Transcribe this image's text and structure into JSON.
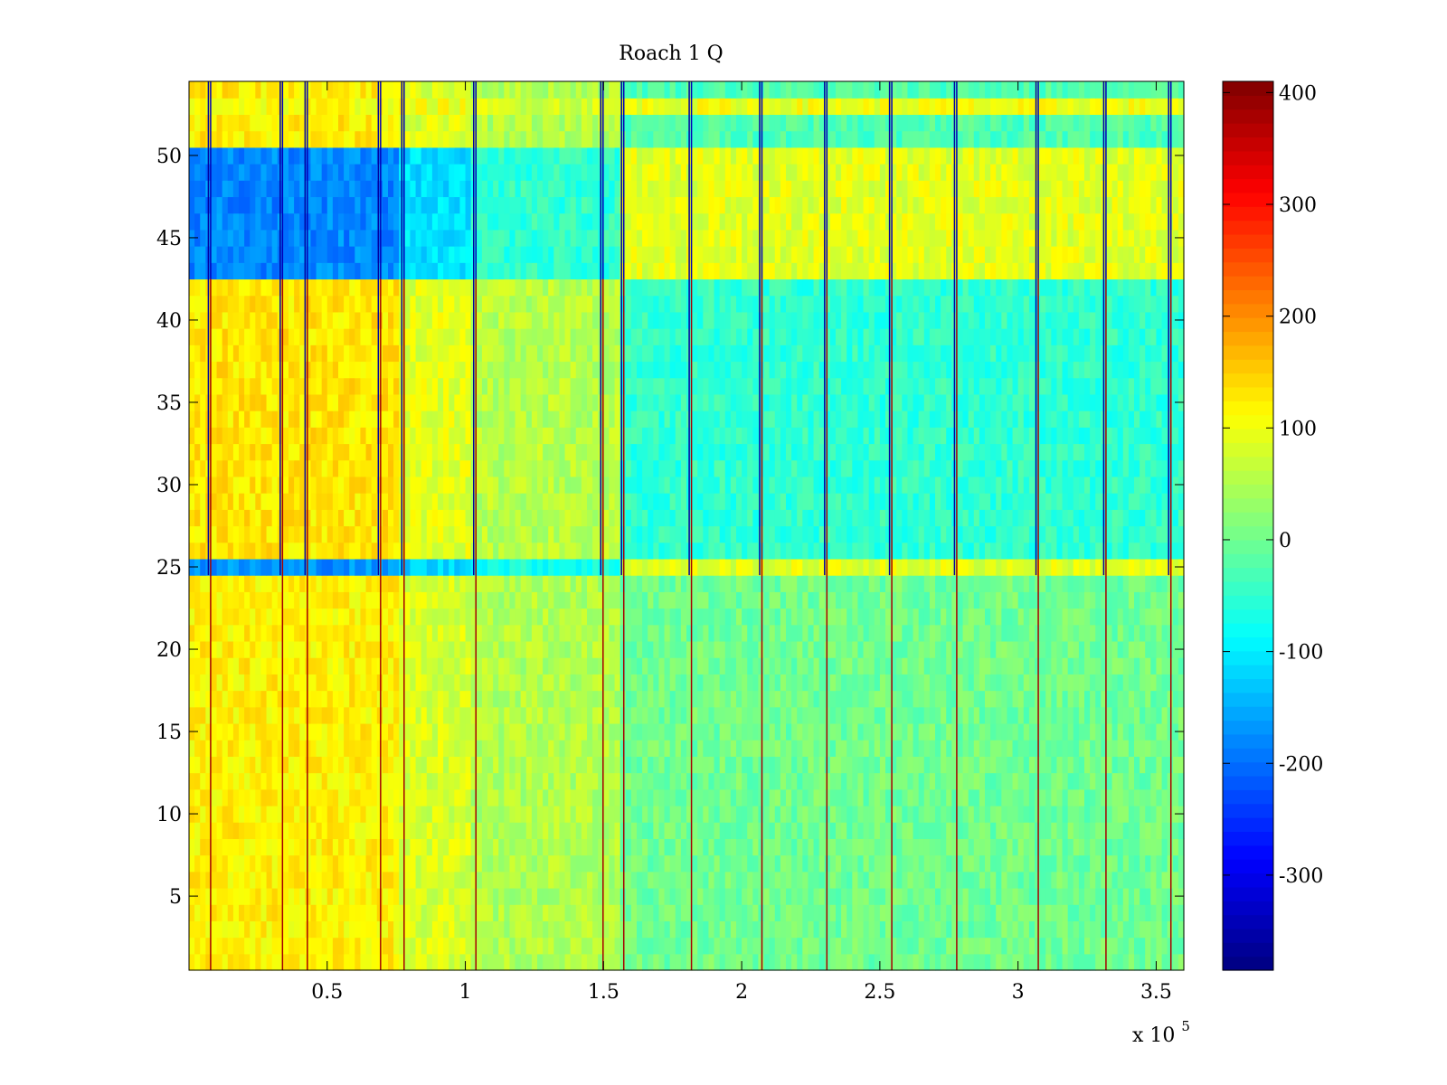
{
  "chart_data": {
    "type": "heatmap",
    "title": "Roach 1 Q",
    "xlabel": "",
    "ylabel": "",
    "x_multiplier_label": "x 10",
    "x_multiplier_exponent": "5",
    "xlim": [
      0,
      360000
    ],
    "ylim": [
      0.5,
      54.5
    ],
    "x_ticks": [
      50000,
      100000,
      150000,
      200000,
      250000,
      300000,
      350000
    ],
    "x_tick_labels": [
      "0.5",
      "1",
      "1.5",
      "2",
      "2.5",
      "3",
      "3.5"
    ],
    "y_ticks": [
      5,
      10,
      15,
      20,
      25,
      30,
      35,
      40,
      45,
      50
    ],
    "y_tick_labels": [
      "5",
      "10",
      "15",
      "20",
      "25",
      "30",
      "35",
      "40",
      "45",
      "50"
    ],
    "rows": 54,
    "colorbar": {
      "colormap": "jet",
      "clim": [
        -385,
        410
      ],
      "ticks": [
        -300,
        -200,
        -100,
        0,
        100,
        200,
        300,
        400
      ],
      "tick_labels": [
        "-300",
        "-200",
        "-100",
        "0",
        "100",
        "200",
        "300",
        "400"
      ]
    },
    "segment_boundaries_x": [
      0,
      77000,
      103000,
      157000,
      360000
    ],
    "segment_levels": [
      {
        "x_range": [
          0,
          77000
        ],
        "rows_1_to_24": 120,
        "row_25": -170,
        "rows_26_to_42": 130,
        "rows_43_to_50": -180,
        "row_53": 110
      },
      {
        "x_range": [
          77000,
          103000
        ],
        "rows_1_to_24": 80,
        "row_25": -120,
        "rows_26_to_42": 90,
        "rows_43_to_50": -110,
        "row_53": 100
      },
      {
        "x_range": [
          103000,
          157000
        ],
        "rows_1_to_24": 50,
        "row_25": -70,
        "rows_26_to_42": 55,
        "rows_43_to_50": -50,
        "row_53": 80
      },
      {
        "x_range": [
          157000,
          360000
        ],
        "rows_1_to_24": 0,
        "row_25": 90,
        "rows_26_to_42": -50,
        "rows_43_to_50": 90,
        "row_53": 100
      }
    ],
    "vertical_stripes_x": [
      7500,
      33500,
      42500,
      69000,
      77500,
      103500,
      149500,
      157000,
      181500,
      207000,
      230500,
      254000,
      277500,
      307000,
      331500,
      355000
    ]
  }
}
